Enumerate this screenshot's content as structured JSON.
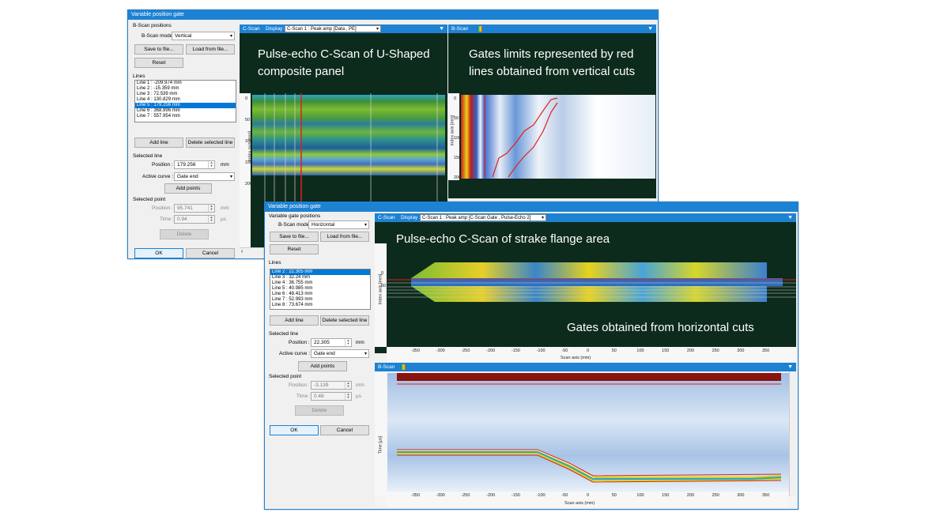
{
  "back_window": {
    "title": "Variable position gate",
    "group_bscan": "B-Scan positions",
    "bscan_mode_label": "B-Scan mode :",
    "bscan_mode_value": "Vertical",
    "save_label": "Save to file...",
    "load_label": "Load from file...",
    "reset_label": "Reset",
    "lines_label": "Lines",
    "lines": [
      "Line 1 : -209.974 mm",
      "Line 2 : -15.359 mm",
      "Line 3 : 72.539 mm",
      "Line 4 : 130.829 mm",
      "Line 5 : 179.256 mm",
      "Line 6 : 368.996 mm",
      "Line 7 : 557.954 mm"
    ],
    "selected_line_index": 4,
    "add_line_label": "Add line",
    "delete_line_label": "Delete selected line",
    "selected_line_group": "Selected line",
    "position_label": "Position :",
    "position_value": "179.256",
    "position_unit": "mm",
    "active_curve_label": "Active curve :",
    "active_curve_value": "Gate end",
    "add_points_label": "Add points",
    "selected_point_group": "Selected point",
    "pt_position_label": "Position :",
    "pt_position_value": "95.741",
    "pt_position_unit": "mm",
    "time_label": "Time :",
    "time_value": "0.94",
    "time_unit": "µs",
    "delete_label": "Delete",
    "ok_label": "OK",
    "cancel_label": "Cancel",
    "cscan_tab": "C-Scan",
    "display_label": "Display :",
    "display_value": "C-Scan 1 : Peak amp [Data , PE]",
    "bscan_tab": "B-Scan",
    "cscan_caption_1": "Pulse-echo C-Scan of U-Shaped",
    "cscan_caption_2": "composite panel",
    "bscan_caption_1": "Gates limits represented by red",
    "bscan_caption_2": "lines obtained from vertical cuts",
    "index_axis_label": "Index axis [mm]",
    "cscan_ticks": [
      "0",
      "50",
      "100",
      "150",
      "200"
    ],
    "cscan_bottom_tick": "50",
    "bscan_ticks": [
      "0",
      "50",
      "100",
      "150",
      "200"
    ]
  },
  "front_window": {
    "title": "Variable position gate",
    "group_bscan": "Variable gate positions",
    "bscan_mode_label": "B-Scan mode :",
    "bscan_mode_value": "Horizontal",
    "save_label": "Save to file...",
    "load_label": "Load from file...",
    "reset_label": "Reset",
    "lines_label": "Lines",
    "lines": [
      "Line 2 : 22.305 mm",
      "Line 3 : 32.24 mm",
      "Line 4 : 36.755 mm",
      "Line 5 : 40.985 mm",
      "Line 6 : 48.413 mm",
      "Line 7 : 52.993 mm",
      "Line 8 : 73.674 mm"
    ],
    "selected_line_index": 0,
    "add_line_label": "Add line",
    "delete_line_label": "Delete selected line",
    "selected_line_group": "Selected line",
    "position_label": "Position :",
    "position_value": "22.305",
    "position_unit": "mm",
    "active_curve_label": "Active curve :",
    "active_curve_value": "Gate end",
    "add_points_label": "Add points",
    "selected_point_group": "Selected point",
    "pt_position_label": "Position :",
    "pt_position_value": "-3.139",
    "pt_position_unit": "mm",
    "time_label": "Time :",
    "time_value": "0.48",
    "time_unit": "µs",
    "delete_label": "Delete",
    "ok_label": "OK",
    "cancel_label": "Cancel",
    "cscan_tab": "C-Scan",
    "display_label": "Display :",
    "display_value": "C-Scan 1 : Peak amp [C-Scan Gate , Pulse-Echo 2]",
    "bscan_tab": "B-Scan",
    "cscan_caption": "Pulse-echo C-Scan of strake flange area",
    "gates_caption": "Gates obtained from horizontal cuts",
    "index_axis_label": "Index axis [mm]",
    "scan_axis_label": "Scan axis (mm)",
    "time_axis_label": "Time [µs]",
    "scan_ticks": [
      "-350",
      "-300",
      "-250",
      "-200",
      "-150",
      "-100",
      "-50",
      "0",
      "50",
      "100",
      "150",
      "200",
      "250",
      "300",
      "350"
    ],
    "cscan_index_ticks": [
      "0",
      "50"
    ]
  },
  "colors": {
    "accent": "#1e82d2",
    "dark_bg": "#0d2b1c",
    "gate_red": "#e0201c"
  }
}
